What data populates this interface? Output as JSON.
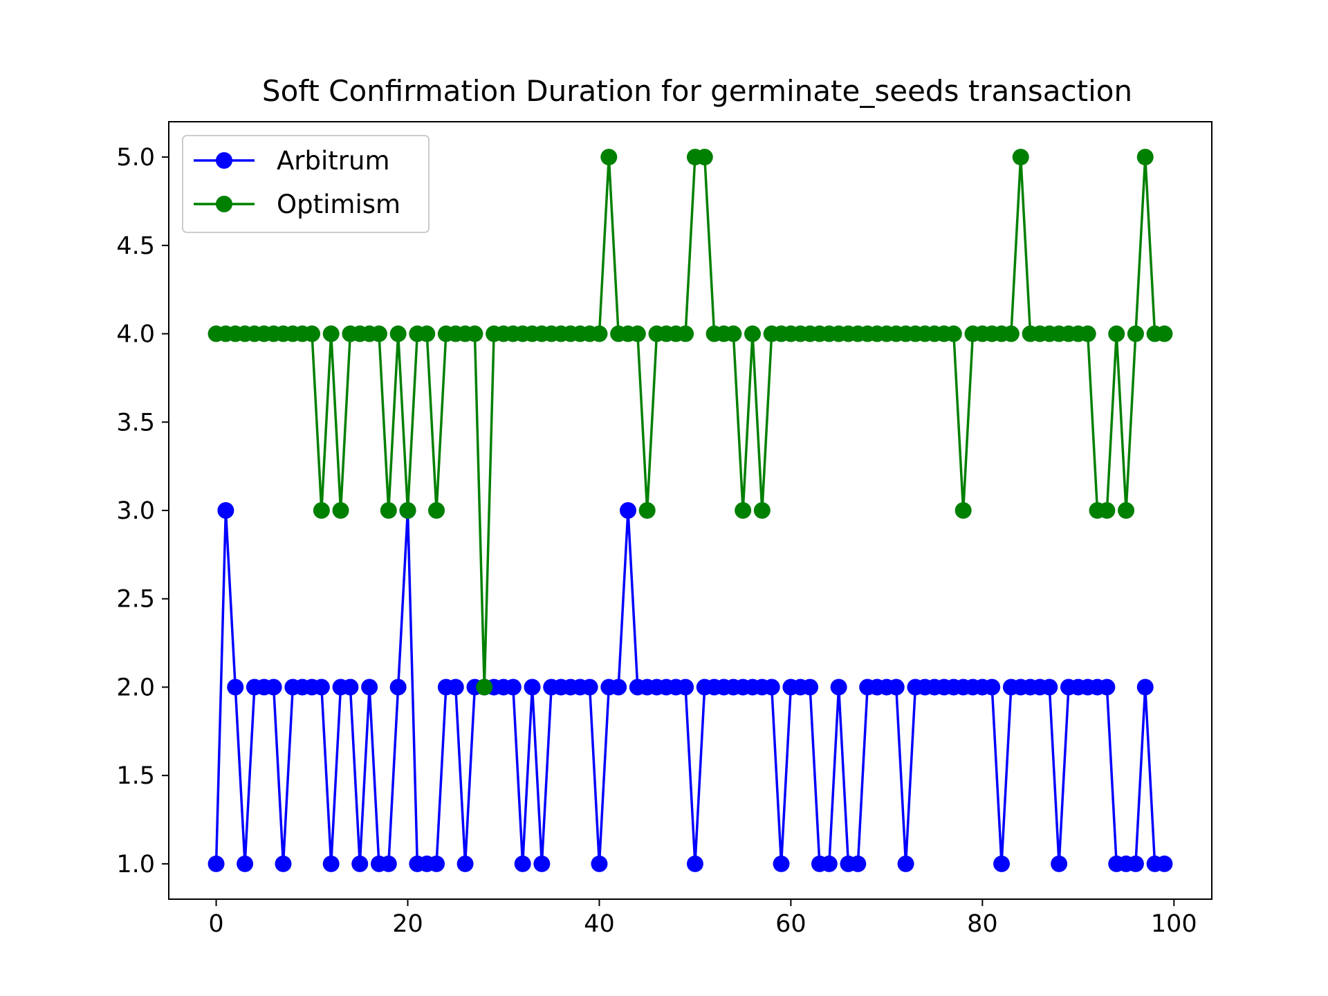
{
  "chart_data": {
    "type": "line",
    "title": "Soft Confirmation Duration for germinate_seeds transaction",
    "xlabel": "",
    "ylabel": "",
    "xlim": [
      -4.95,
      103.95
    ],
    "ylim": [
      0.8,
      5.2
    ],
    "xticks": [
      0,
      20,
      40,
      60,
      80,
      100
    ],
    "yticks": [
      1.0,
      1.5,
      2.0,
      2.5,
      3.0,
      3.5,
      4.0,
      4.5,
      5.0
    ],
    "xtick_labels": [
      "0",
      "20",
      "40",
      "60",
      "80",
      "100"
    ],
    "ytick_labels": [
      "1.0",
      "1.5",
      "2.0",
      "2.5",
      "3.0",
      "3.5",
      "4.0",
      "4.5",
      "5.0"
    ],
    "grid": false,
    "legend_position": "top-left",
    "markers": true,
    "series": [
      {
        "name": "Arbitrum",
        "color": "#0000ff",
        "values": [
          1,
          3,
          2,
          1,
          2,
          2,
          2,
          1,
          2,
          2,
          2,
          2,
          1,
          2,
          2,
          1,
          2,
          1,
          1,
          2,
          3,
          1,
          1,
          1,
          2,
          2,
          1,
          2,
          2,
          2,
          2,
          2,
          1,
          2,
          1,
          2,
          2,
          2,
          2,
          2,
          1,
          2,
          2,
          3,
          2,
          2,
          2,
          2,
          2,
          2,
          1,
          2,
          2,
          2,
          2,
          2,
          2,
          2,
          2,
          1,
          2,
          2,
          2,
          1,
          1,
          2,
          1,
          1,
          2,
          2,
          2,
          2,
          1,
          2,
          2,
          2,
          2,
          2,
          2,
          2,
          2,
          2,
          1,
          2,
          2,
          2,
          2,
          2,
          1,
          2,
          2,
          2,
          2,
          2,
          1,
          1,
          1,
          2,
          1,
          1
        ]
      },
      {
        "name": "Optimism",
        "color": "#008000",
        "values": [
          4,
          4,
          4,
          4,
          4,
          4,
          4,
          4,
          4,
          4,
          4,
          3,
          4,
          3,
          4,
          4,
          4,
          4,
          3,
          4,
          3,
          4,
          4,
          3,
          4,
          4,
          4,
          4,
          2,
          4,
          4,
          4,
          4,
          4,
          4,
          4,
          4,
          4,
          4,
          4,
          4,
          5,
          4,
          4,
          4,
          3,
          4,
          4,
          4,
          4,
          5,
          5,
          4,
          4,
          4,
          3,
          4,
          3,
          4,
          4,
          4,
          4,
          4,
          4,
          4,
          4,
          4,
          4,
          4,
          4,
          4,
          4,
          4,
          4,
          4,
          4,
          4,
          4,
          3,
          4,
          4,
          4,
          4,
          4,
          5,
          4,
          4,
          4,
          4,
          4,
          4,
          4,
          3,
          3,
          4,
          3,
          4,
          5,
          4,
          4
        ]
      }
    ]
  }
}
